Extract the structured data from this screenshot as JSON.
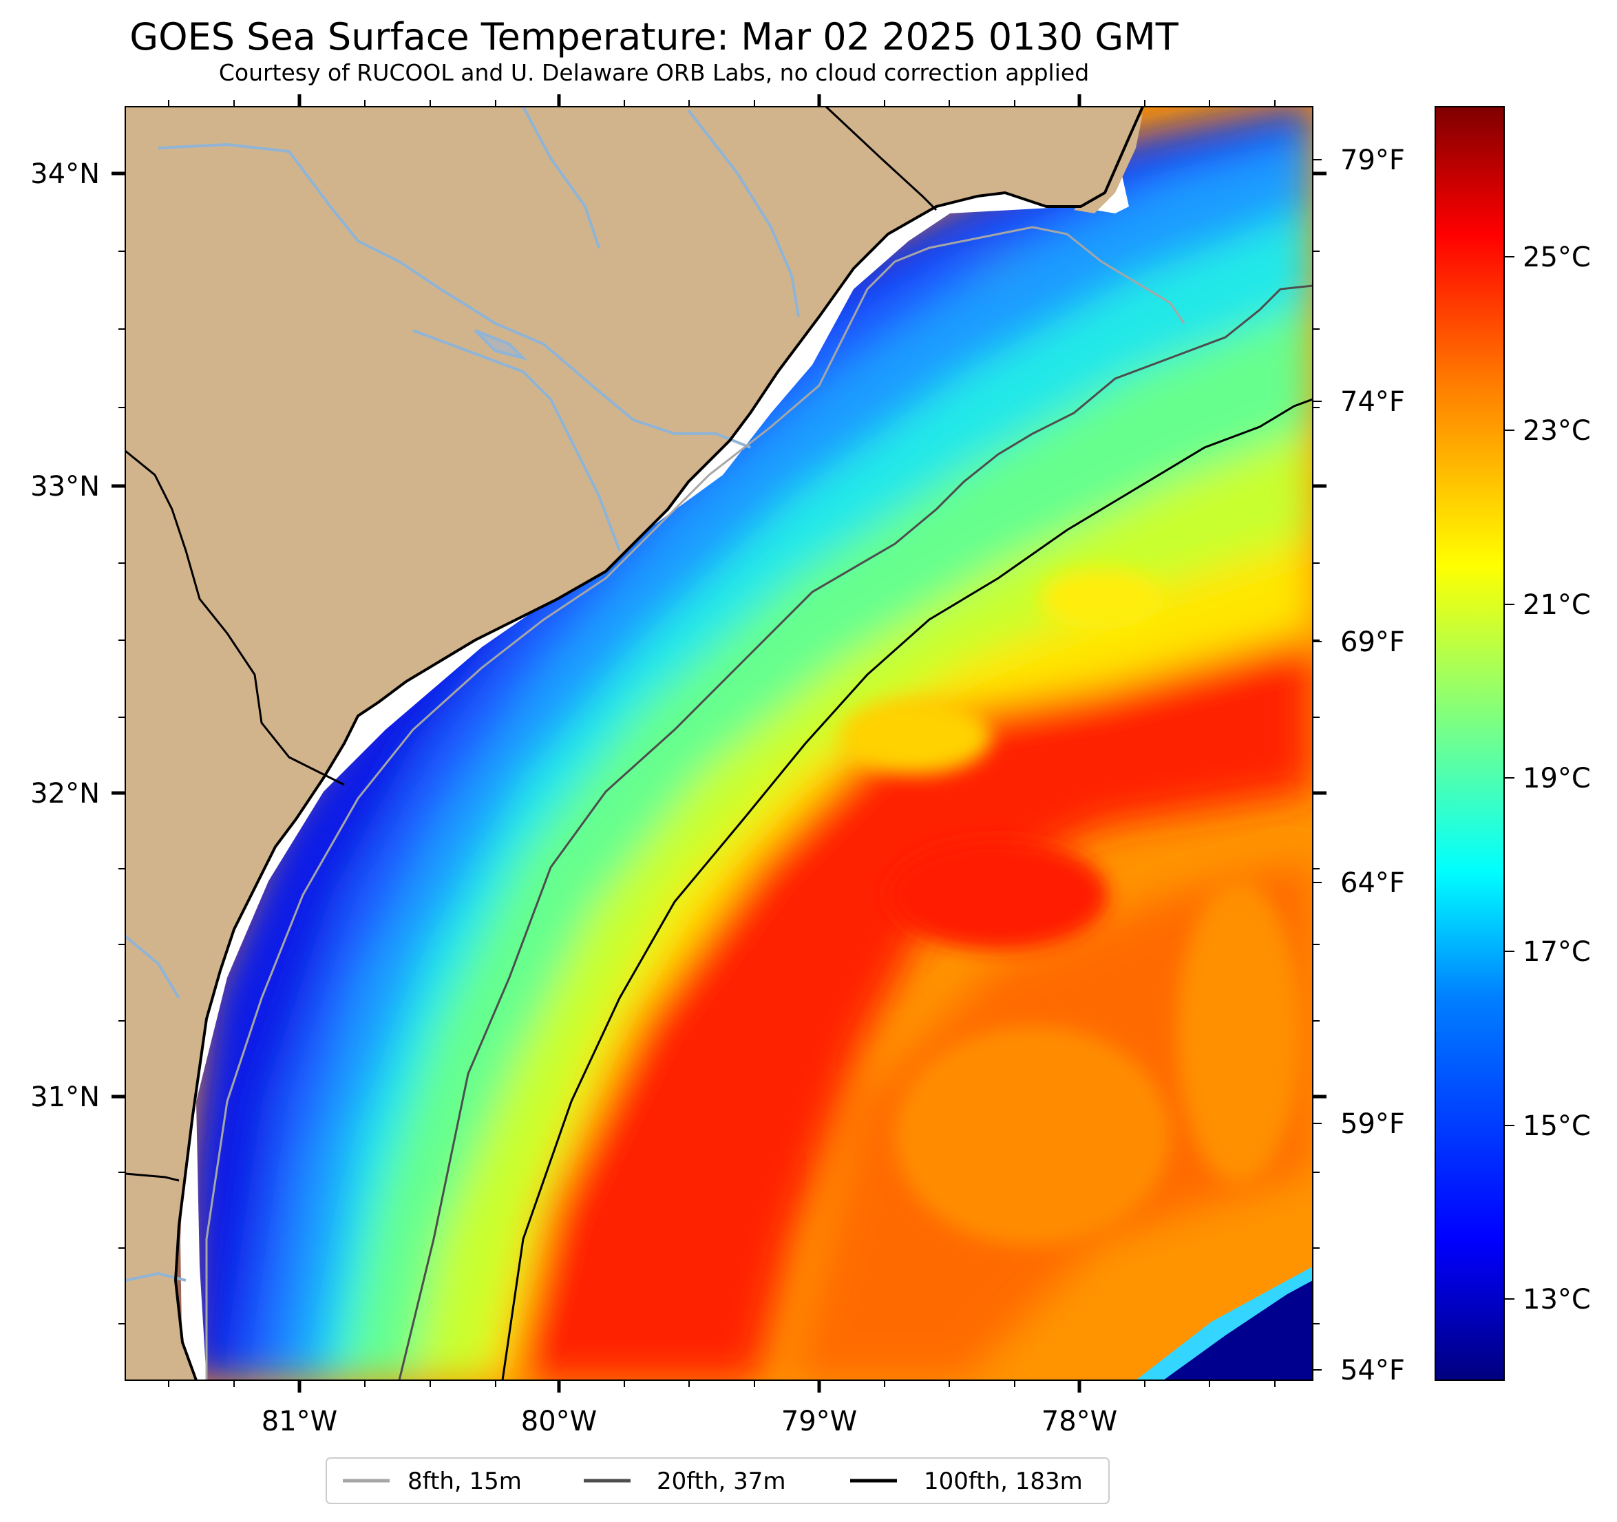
{
  "title": "GOES Sea Surface Temperature: Mar 02 2025 0130 GMT",
  "subtitle": "Courtesy of RUCOOL and U. Delaware ORB Labs, no cloud correction applied",
  "axes": {
    "lon_labels": [
      "81°W",
      "80°W",
      "79°W",
      "78°W"
    ],
    "lat_labels": [
      "34°N",
      "33°N",
      "32°N",
      "31°N"
    ],
    "fahrenheit_labels": [
      "79°F",
      "74°F",
      "69°F",
      "64°F",
      "59°F",
      "54°F"
    ]
  },
  "colorbar": {
    "unit": "°C",
    "labels": [
      "25°C",
      "23°C",
      "21°C",
      "19°C",
      "17°C",
      "15°C",
      "13°C"
    ],
    "colormap": "jet",
    "colors": [
      "#00007f",
      "#0000ff",
      "#007fff",
      "#00ffff",
      "#7fff7f",
      "#ffff00",
      "#ff7f00",
      "#ff0000",
      "#7f0000"
    ]
  },
  "legend": {
    "items": [
      {
        "label": "8fth, 15m",
        "color": "#a6a6a6"
      },
      {
        "label": "20fth, 37m",
        "color": "#4d4d4d"
      },
      {
        "label": "100fth, 183m",
        "color": "#000000"
      }
    ]
  },
  "map": {
    "land_color": "#d2b48c",
    "river_color": "#8fb4d6"
  }
}
